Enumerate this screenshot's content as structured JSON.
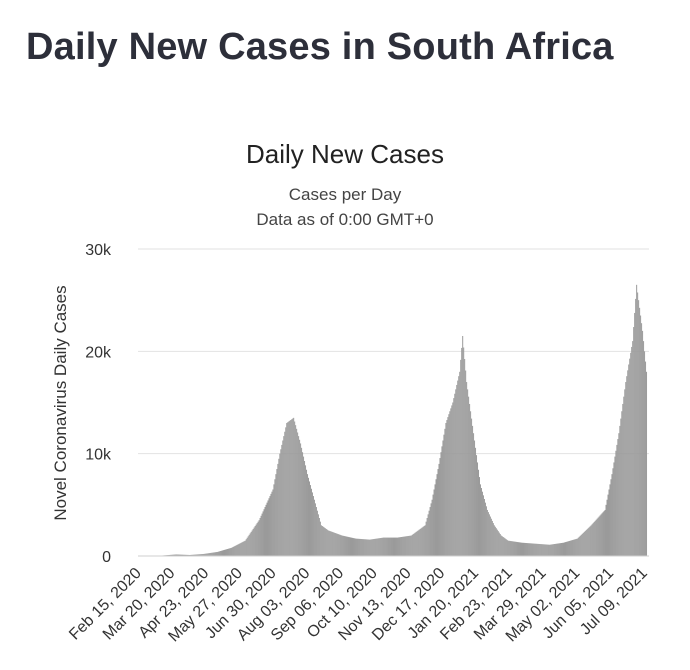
{
  "page": {
    "heading": "Daily New Cases in South Africa"
  },
  "chart_data": {
    "type": "bar",
    "title": "Daily New Cases",
    "subtitle": "Cases per Day",
    "note": "Data as of 0:00 GMT+0",
    "ylabel": "Novel Coronavirus Daily Cases",
    "xlabel": "",
    "ylim": [
      0,
      30000
    ],
    "yticks": [
      {
        "value": 0,
        "label": "0"
      },
      {
        "value": 10000,
        "label": "10k"
      },
      {
        "value": 20000,
        "label": "20k"
      },
      {
        "value": 30000,
        "label": "30k"
      }
    ],
    "x_range": [
      "2020-02-15",
      "2021-07-16"
    ],
    "x_tick_labels": [
      "Feb 15, 2020",
      "Mar 20, 2020",
      "Apr 23, 2020",
      "May 27, 2020",
      "Jun 30, 2020",
      "Aug 03, 2020",
      "Sep 06, 2020",
      "Oct 10, 2020",
      "Nov 13, 2020",
      "Dec 17, 2020",
      "Jan 20, 2021",
      "Feb 23, 2021",
      "Mar 29, 2021",
      "May 02, 2021",
      "Jun 05, 2021",
      "Jul 09, 2021"
    ],
    "grid": true,
    "series": [
      {
        "color": "#9a9a9a",
        "points": [
          [
            "2020-03-10",
            50
          ],
          [
            "2020-03-24",
            150
          ],
          [
            "2020-04-07",
            100
          ],
          [
            "2020-04-21",
            200
          ],
          [
            "2020-05-05",
            400
          ],
          [
            "2020-05-19",
            800
          ],
          [
            "2020-06-02",
            1500
          ],
          [
            "2020-06-16",
            3500
          ],
          [
            "2020-06-30",
            6500
          ],
          [
            "2020-07-07",
            10000
          ],
          [
            "2020-07-14",
            13000
          ],
          [
            "2020-07-21",
            13500
          ],
          [
            "2020-07-28",
            11000
          ],
          [
            "2020-08-04",
            8000
          ],
          [
            "2020-08-11",
            5500
          ],
          [
            "2020-08-18",
            3000
          ],
          [
            "2020-08-25",
            2500
          ],
          [
            "2020-09-08",
            2000
          ],
          [
            "2020-09-22",
            1700
          ],
          [
            "2020-10-06",
            1600
          ],
          [
            "2020-10-20",
            1800
          ],
          [
            "2020-11-03",
            1800
          ],
          [
            "2020-11-17",
            2000
          ],
          [
            "2020-12-01",
            3000
          ],
          [
            "2020-12-08",
            5500
          ],
          [
            "2020-12-15",
            9000
          ],
          [
            "2020-12-22",
            13000
          ],
          [
            "2020-12-29",
            15000
          ],
          [
            "2021-01-05",
            18000
          ],
          [
            "2021-01-08",
            21500
          ],
          [
            "2021-01-12",
            17000
          ],
          [
            "2021-01-19",
            12000
          ],
          [
            "2021-01-26",
            7000
          ],
          [
            "2021-02-02",
            4500
          ],
          [
            "2021-02-09",
            3000
          ],
          [
            "2021-02-16",
            2000
          ],
          [
            "2021-02-23",
            1500
          ],
          [
            "2021-03-09",
            1300
          ],
          [
            "2021-03-23",
            1200
          ],
          [
            "2021-04-06",
            1100
          ],
          [
            "2021-04-20",
            1300
          ],
          [
            "2021-05-04",
            1700
          ],
          [
            "2021-05-18",
            3000
          ],
          [
            "2021-06-01",
            4500
          ],
          [
            "2021-06-08",
            8000
          ],
          [
            "2021-06-15",
            12000
          ],
          [
            "2021-06-22",
            17000
          ],
          [
            "2021-06-29",
            21000
          ],
          [
            "2021-07-03",
            26500
          ],
          [
            "2021-07-09",
            22000
          ],
          [
            "2021-07-13",
            18000
          ]
        ]
      }
    ]
  }
}
